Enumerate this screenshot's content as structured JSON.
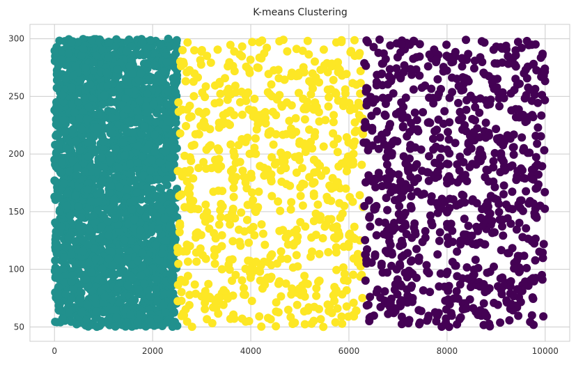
{
  "chart_data": {
    "type": "scatter",
    "title": "K-means Clustering",
    "xlabel": "",
    "ylabel": "",
    "xlim": [
      -500,
      10500
    ],
    "ylim": [
      37.5,
      312.5
    ],
    "x_ticks": [
      0,
      2000,
      4000,
      6000,
      8000,
      10000
    ],
    "y_ticks": [
      50,
      100,
      150,
      200,
      250,
      300
    ],
    "grid": true,
    "legend": "none",
    "colors": {
      "background": "#ffffff",
      "grid": "#cccccc",
      "axis_frame": "#cccccc"
    },
    "series": [
      {
        "cluster": 0,
        "color": "#21908d",
        "x_range": [
          0,
          2500
        ],
        "y_range": [
          50,
          300
        ],
        "point_count": 2500
      },
      {
        "cluster": 1,
        "color": "#fde725",
        "x_range": [
          2500,
          6300
        ],
        "y_range": [
          50,
          300
        ],
        "point_count": 700
      },
      {
        "cluster": 2,
        "color": "#440154",
        "x_range": [
          6300,
          10000
        ],
        "y_range": [
          50,
          300
        ],
        "point_count": 850
      }
    ]
  }
}
